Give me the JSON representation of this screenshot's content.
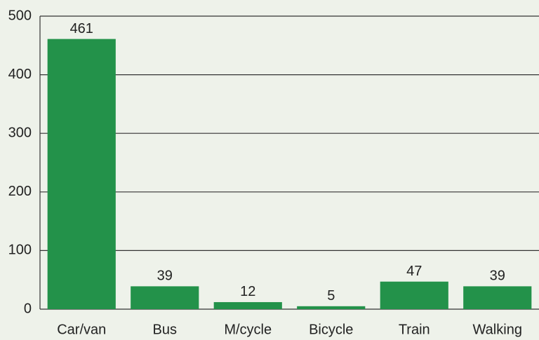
{
  "chart_data": {
    "type": "bar",
    "categories": [
      "Car/van",
      "Bus",
      "M/cycle",
      "Bicycle",
      "Train",
      "Walking"
    ],
    "values": [
      461,
      39,
      12,
      5,
      47,
      39
    ],
    "color": "#23924a",
    "ylim": [
      0,
      500
    ],
    "yticks": [
      0,
      100,
      200,
      300,
      400,
      500
    ],
    "grid": true
  }
}
